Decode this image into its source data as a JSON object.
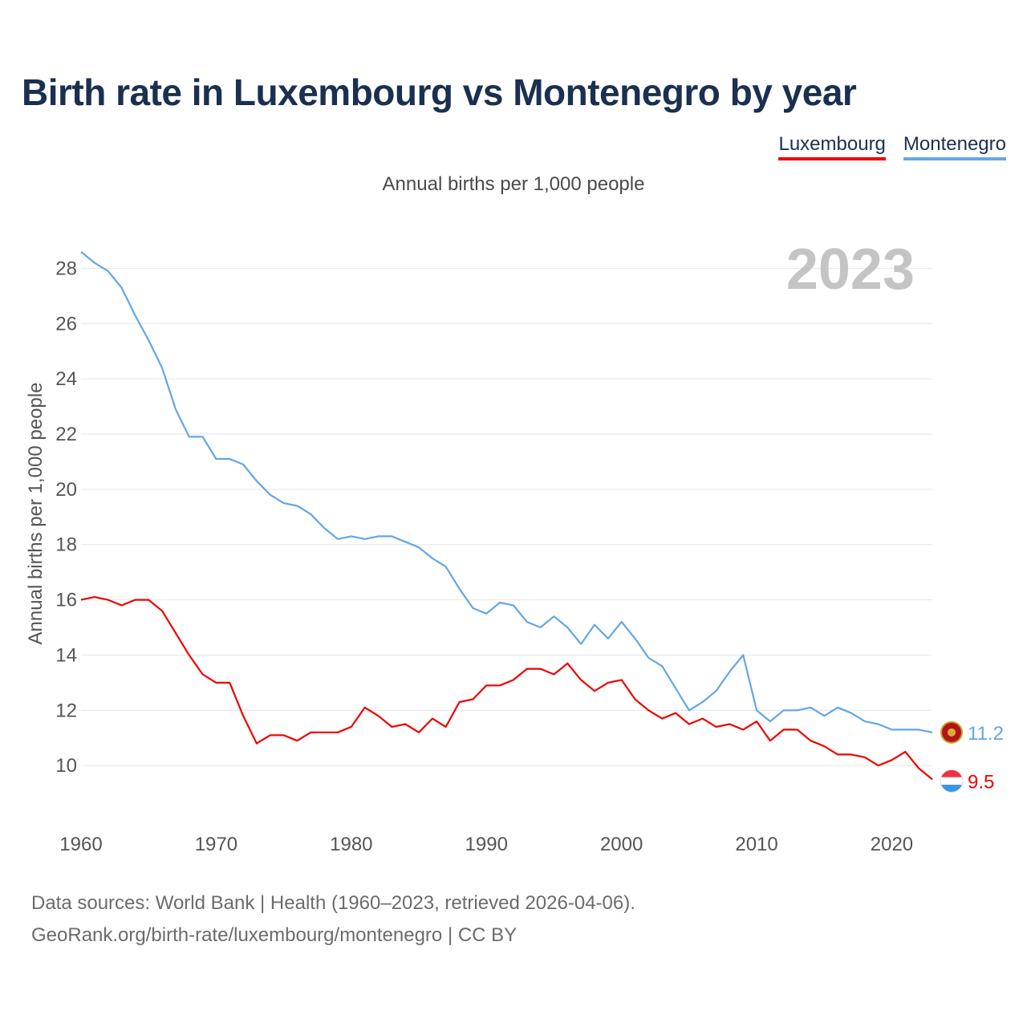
{
  "title": "Birth rate in Luxembourg vs Montenegro by year",
  "legend": [
    {
      "name": "Luxembourg",
      "color": "#f00000"
    },
    {
      "name": "Montenegro",
      "color": "#63a6e6"
    }
  ],
  "subtitle": "Annual births per 1,000 people",
  "year_watermark": "2023",
  "source": {
    "line1": "Data sources: World Bank | Health (1960–2023, retrieved 2026-04-06).",
    "line2": "GeoRank.org/birth-rate/luxembourg/montenegro | CC BY"
  },
  "chart_data": {
    "type": "line",
    "title": "Birth rate in Luxembourg vs Montenegro by year",
    "xlabel": "",
    "ylabel": "Annual births per 1,000 people",
    "xlim": [
      1960,
      2023
    ],
    "ylim": [
      8,
      29
    ],
    "x_ticks": [
      1960,
      1970,
      1980,
      1990,
      2000,
      2010,
      2020
    ],
    "y_ticks": [
      10,
      12,
      14,
      16,
      18,
      20,
      22,
      24,
      26,
      28
    ],
    "grid": true,
    "legend_position": "top-right",
    "x": [
      1960,
      1961,
      1962,
      1963,
      1964,
      1965,
      1966,
      1967,
      1968,
      1969,
      1970,
      1971,
      1972,
      1973,
      1974,
      1975,
      1976,
      1977,
      1978,
      1979,
      1980,
      1981,
      1982,
      1983,
      1984,
      1985,
      1986,
      1987,
      1988,
      1989,
      1990,
      1991,
      1992,
      1993,
      1994,
      1995,
      1996,
      1997,
      1998,
      1999,
      2000,
      2001,
      2002,
      2003,
      2004,
      2005,
      2006,
      2007,
      2008,
      2009,
      2010,
      2011,
      2012,
      2013,
      2014,
      2015,
      2016,
      2017,
      2018,
      2019,
      2020,
      2021,
      2022,
      2023
    ],
    "series": [
      {
        "name": "Montenegro",
        "color": "#63a6e6",
        "end_label": "11.2",
        "values": [
          28.6,
          28.2,
          27.9,
          27.3,
          26.3,
          25.4,
          24.4,
          22.9,
          21.9,
          21.9,
          21.1,
          21.1,
          20.9,
          20.3,
          19.8,
          19.5,
          19.4,
          19.1,
          18.6,
          18.2,
          18.3,
          18.2,
          18.3,
          18.3,
          18.1,
          17.9,
          17.5,
          17.2,
          16.4,
          15.7,
          15.5,
          15.9,
          15.8,
          15.2,
          15.0,
          15.4,
          15.0,
          14.4,
          15.1,
          14.6,
          15.2,
          14.6,
          13.9,
          13.6,
          12.8,
          12.0,
          12.3,
          12.7,
          13.4,
          14.0,
          12.0,
          11.6,
          12.0,
          12.0,
          12.1,
          11.8,
          12.1,
          11.9,
          11.6,
          11.5,
          11.3,
          11.3,
          11.3,
          11.2
        ]
      },
      {
        "name": "Luxembourg",
        "color": "#f00000",
        "end_label": "9.5",
        "values": [
          16.0,
          16.1,
          16.0,
          15.8,
          16.0,
          16.0,
          15.6,
          14.8,
          14.0,
          13.3,
          13.0,
          13.0,
          11.8,
          10.8,
          11.1,
          11.1,
          10.9,
          11.2,
          11.2,
          11.2,
          11.4,
          12.1,
          11.8,
          11.4,
          11.5,
          11.2,
          11.7,
          11.4,
          12.3,
          12.4,
          12.9,
          12.9,
          13.1,
          13.5,
          13.5,
          13.3,
          13.7,
          13.1,
          12.7,
          13.0,
          13.1,
          12.4,
          12.0,
          11.7,
          11.9,
          11.5,
          11.7,
          11.4,
          11.5,
          11.3,
          11.6,
          10.9,
          11.3,
          11.3,
          10.9,
          10.7,
          10.4,
          10.4,
          10.3,
          10.0,
          10.2,
          10.5,
          9.9,
          9.5
        ]
      }
    ]
  }
}
